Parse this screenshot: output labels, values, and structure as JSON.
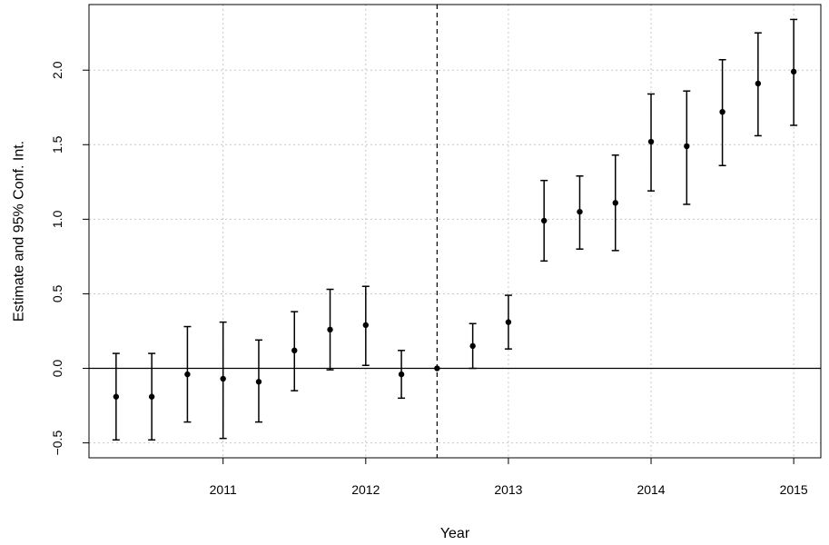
{
  "chart_data": {
    "type": "scatter",
    "title": "",
    "xlabel": "Year",
    "ylabel": "Estimate and 95% Conf. Int.",
    "xlim": [
      2010.06,
      2015.19
    ],
    "ylim": [
      -0.6,
      2.44
    ],
    "x_ticks": [
      2011,
      2012,
      2013,
      2014,
      2015
    ],
    "y_ticks": [
      -0.5,
      0.0,
      0.5,
      1.0,
      1.5,
      2.0
    ],
    "y_tick_labels": [
      "−0.5",
      "0.0",
      "0.5",
      "1.0",
      "1.5",
      "2.0"
    ],
    "grid": true,
    "reference_hline": 0,
    "reference_vline": 2012.5,
    "series": [
      {
        "points": [
          {
            "x": 2010.25,
            "y": -0.19,
            "lower": -0.48,
            "upper": 0.1
          },
          {
            "x": 2010.5,
            "y": -0.19,
            "lower": -0.48,
            "upper": 0.1
          },
          {
            "x": 2010.75,
            "y": -0.04,
            "lower": -0.36,
            "upper": 0.28
          },
          {
            "x": 2011.0,
            "y": -0.07,
            "lower": -0.47,
            "upper": 0.31
          },
          {
            "x": 2011.25,
            "y": -0.09,
            "lower": -0.36,
            "upper": 0.19
          },
          {
            "x": 2011.5,
            "y": 0.12,
            "lower": -0.15,
            "upper": 0.38
          },
          {
            "x": 2011.75,
            "y": 0.26,
            "lower": -0.01,
            "upper": 0.53
          },
          {
            "x": 2012.0,
            "y": 0.29,
            "lower": 0.02,
            "upper": 0.55
          },
          {
            "x": 2012.25,
            "y": -0.04,
            "lower": -0.2,
            "upper": 0.12
          },
          {
            "x": 2012.5,
            "y": 0.0,
            "lower": 0.0,
            "upper": 0.0
          },
          {
            "x": 2012.75,
            "y": 0.15,
            "lower": 0.0,
            "upper": 0.3
          },
          {
            "x": 2013.0,
            "y": 0.31,
            "lower": 0.13,
            "upper": 0.49
          },
          {
            "x": 2013.25,
            "y": 0.99,
            "lower": 0.72,
            "upper": 1.26
          },
          {
            "x": 2013.5,
            "y": 1.05,
            "lower": 0.8,
            "upper": 1.29
          },
          {
            "x": 2013.75,
            "y": 1.11,
            "lower": 0.79,
            "upper": 1.43
          },
          {
            "x": 2014.0,
            "y": 1.52,
            "lower": 1.19,
            "upper": 1.84
          },
          {
            "x": 2014.25,
            "y": 1.49,
            "lower": 1.1,
            "upper": 1.86
          },
          {
            "x": 2014.5,
            "y": 1.72,
            "lower": 1.36,
            "upper": 2.07
          },
          {
            "x": 2014.75,
            "y": 1.91,
            "lower": 1.56,
            "upper": 2.25
          },
          {
            "x": 2015.0,
            "y": 1.99,
            "lower": 1.63,
            "upper": 2.34
          }
        ]
      }
    ]
  }
}
